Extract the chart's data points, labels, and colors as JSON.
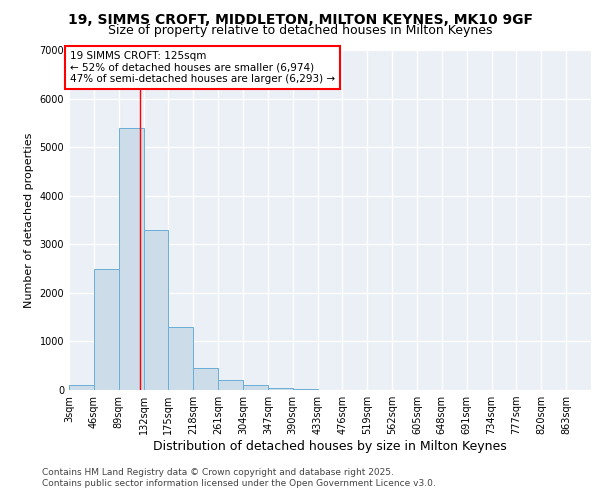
{
  "title_line1": "19, SIMMS CROFT, MIDDLETON, MILTON KEYNES, MK10 9GF",
  "title_line2": "Size of property relative to detached houses in Milton Keynes",
  "xlabel": "Distribution of detached houses by size in Milton Keynes",
  "ylabel": "Number of detached properties",
  "bin_edges": [
    3,
    46,
    89,
    132,
    175,
    218,
    261,
    304,
    347,
    390,
    433,
    476,
    519,
    562,
    605,
    648,
    691,
    734,
    777,
    820,
    863
  ],
  "bar_heights": [
    100,
    2500,
    5400,
    3300,
    1300,
    450,
    200,
    100,
    50,
    30,
    0,
    0,
    0,
    0,
    0,
    0,
    0,
    0,
    0,
    0
  ],
  "bar_color": "#ccdce8",
  "bar_edge_color": "#6aaed6",
  "vline_x": 125,
  "vline_color": "red",
  "annotation_text": "19 SIMMS CROFT: 125sqm\n← 52% of detached houses are smaller (6,974)\n47% of semi-detached houses are larger (6,293) →",
  "ylim": [
    0,
    7000
  ],
  "yticks": [
    0,
    1000,
    2000,
    3000,
    4000,
    5000,
    6000,
    7000
  ],
  "background_color": "#eaf0f6",
  "grid_color": "white",
  "footnote_line1": "Contains HM Land Registry data © Crown copyright and database right 2025.",
  "footnote_line2": "Contains public sector information licensed under the Open Government Licence v3.0.",
  "title_fontsize": 10,
  "subtitle_fontsize": 9,
  "ylabel_fontsize": 8,
  "xlabel_fontsize": 9,
  "tick_fontsize": 7,
  "annotation_fontsize": 7.5,
  "footnote_fontsize": 6.5
}
